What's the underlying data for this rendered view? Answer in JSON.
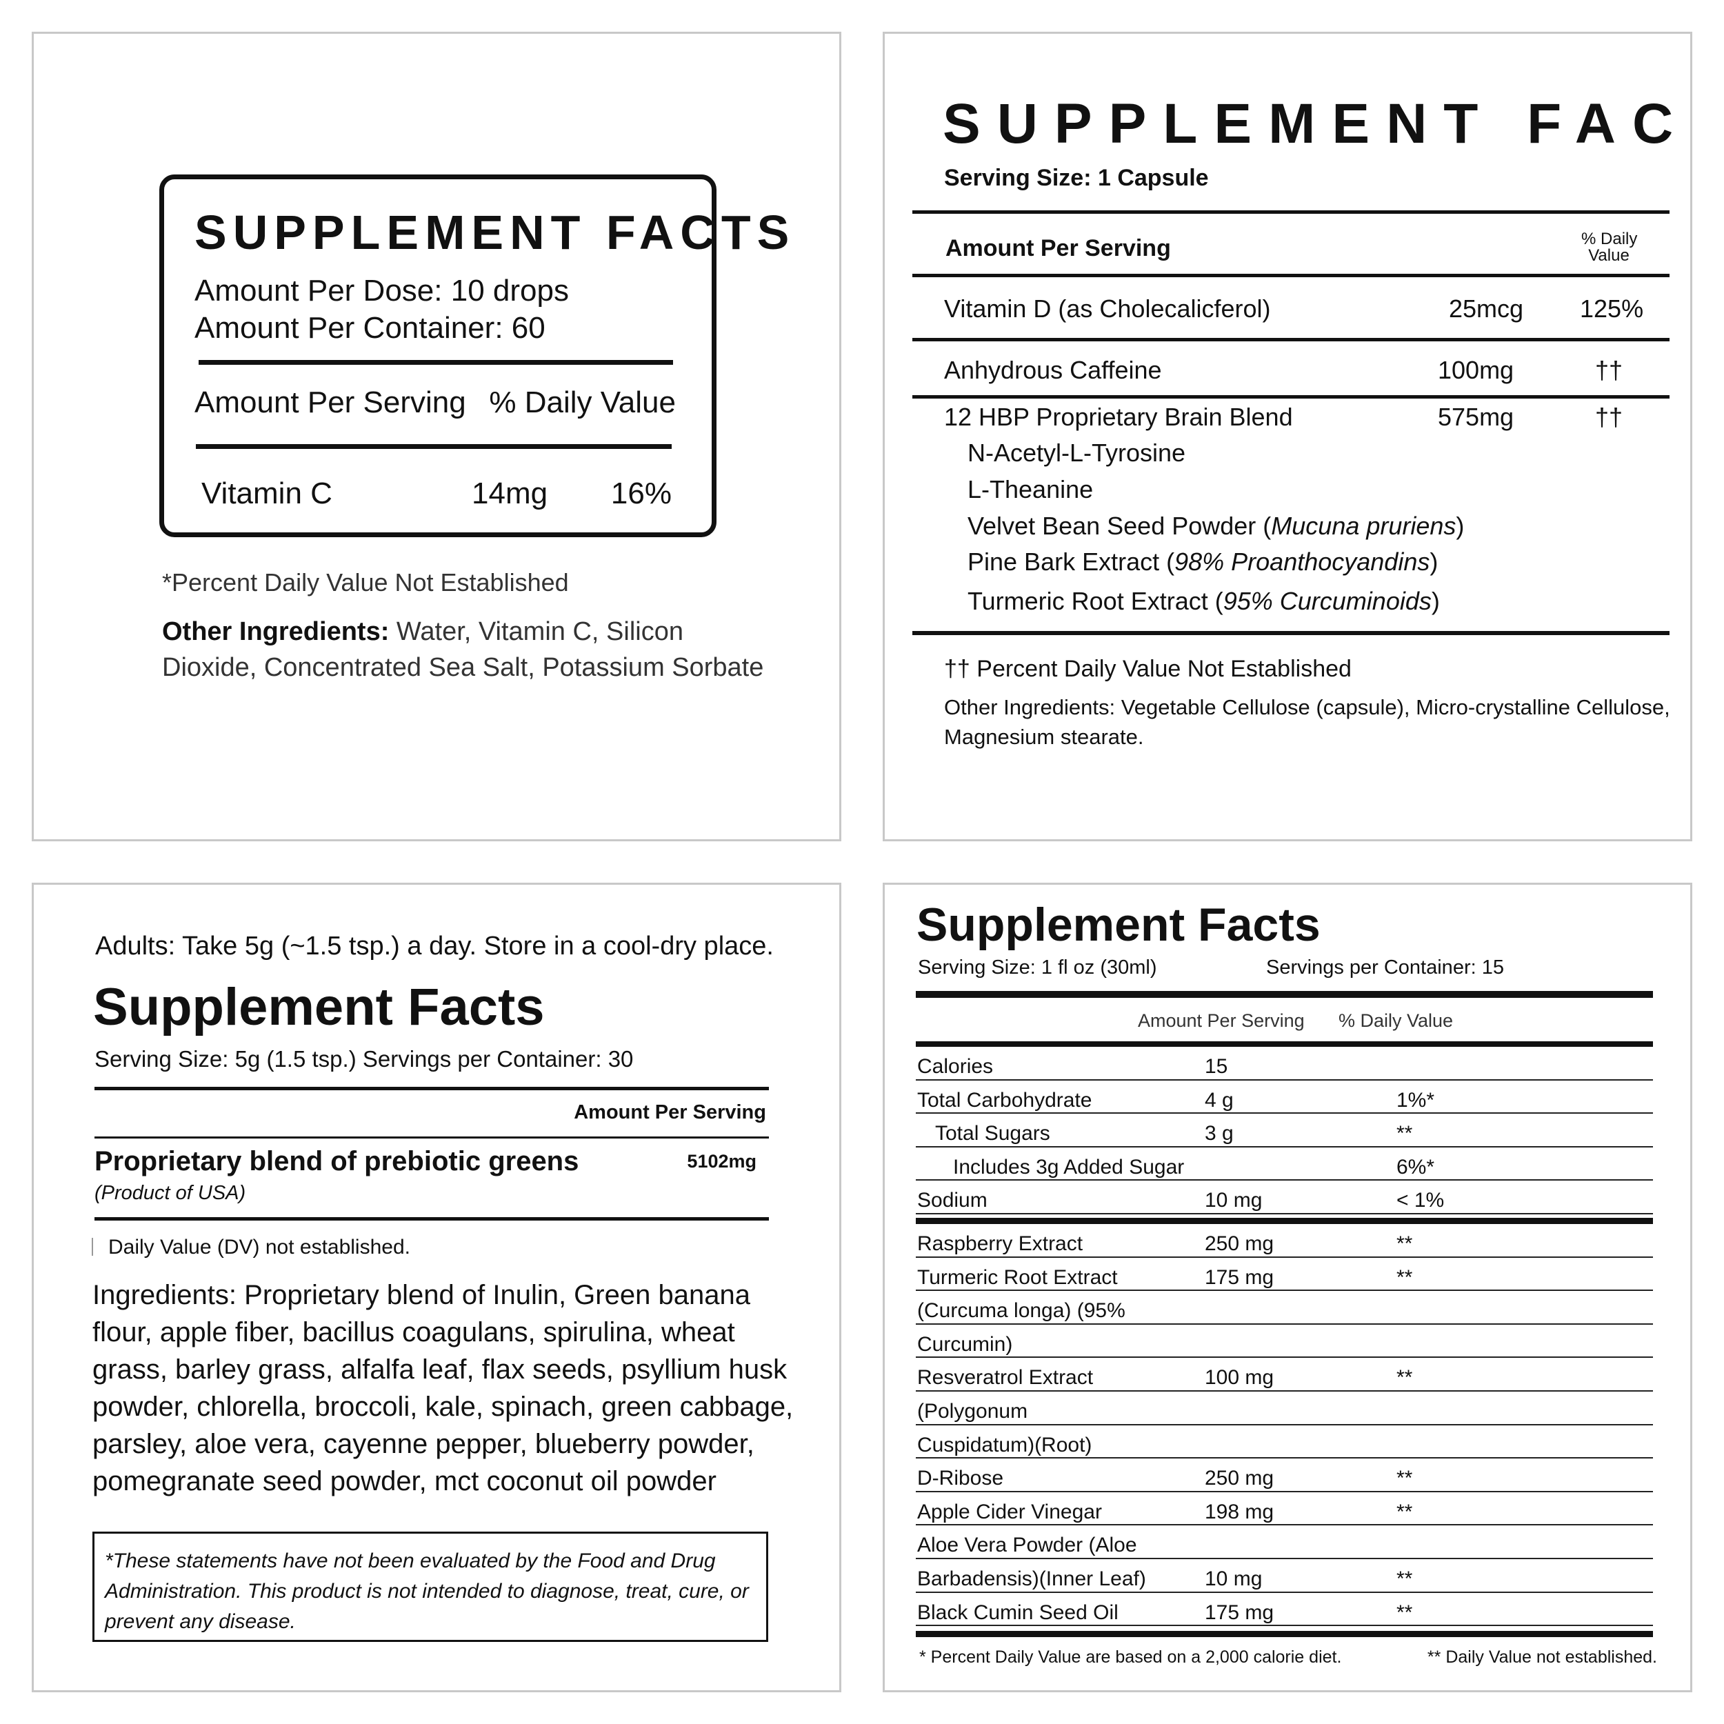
{
  "label1": {
    "title": "SUPPLEMENT FACTS",
    "dose": "Amount Per Dose: 10 drops",
    "container": "Amount Per Container: 60",
    "header_amount": "Amount Per Serving",
    "header_dv": "% Daily Value",
    "row": {
      "name": "Vitamin C",
      "amount": "14mg",
      "dv": "16%"
    },
    "footnote": "*Percent Daily Value Not Established",
    "other_label": "Other Ingredients:",
    "other_line1": " Water, Vitamin C, Silicon",
    "other_line2": "Dioxide, Concentrated Sea Salt, Potassium Sorbate"
  },
  "label2": {
    "title": "SUPPLEMENT FACTS",
    "serving": "Serving Size: 1 Capsule",
    "header_amount": "Amount Per Serving",
    "header_dv1": "% Daily",
    "header_dv2": "Value",
    "rows": [
      {
        "name": "Vitamin D  (as Cholecalicferol)",
        "amount": "25mcg",
        "dv": "125%"
      },
      {
        "name": "Anhydrous Caffeine",
        "amount": "100mg",
        "dv": "††"
      },
      {
        "name": "12 HBP Proprietary Brain Blend",
        "amount": "575mg",
        "dv": "††"
      }
    ],
    "blend": [
      {
        "name": "N-Acetyl-L-Tyrosine",
        "note": ""
      },
      {
        "name": "L-Theanine",
        "note": ""
      },
      {
        "name": "Velvet Bean Seed Powder  (",
        "note": "Mucuna pruriens",
        "close": ")"
      },
      {
        "name": "Pine Bark Extract  (",
        "note": "98% Proanthocyandins",
        "close": ")"
      },
      {
        "name": "Turmeric Root Extract (",
        "note": "95% Curcuminoids",
        "close": ")"
      }
    ],
    "footnote": "†† Percent Daily Value Not Established",
    "other_line1": "Other Ingredients: Vegetable Cellulose (capsule), Micro-crystalline Cellulose,",
    "other_line2": "Magnesium stearate."
  },
  "label3": {
    "directions": "Adults: Take 5g (~1.5 tsp.) a day. Store in a cool-dry place.",
    "title": "Supplement Facts",
    "serving": "Serving Size: 5g (1.5 tsp.) Servings per Container: 30",
    "header_amount": "Amount Per Serving",
    "blend_name": "Proprietary blend of prebiotic greens",
    "blend_amount": "5102mg",
    "origin": "(Product of USA)",
    "dv_note": "Daily Value (DV) not established.",
    "ingredients": [
      "Ingredients: Proprietary blend of Inulin, Green banana",
      "flour, apple fiber, bacillus coagulans, spirulina, wheat",
      "grass, barley grass, alfalfa leaf, flax seeds, psyllium husk",
      "powder, chlorella, broccoli, kale, spinach, green cabbage,",
      "parsley, aloe vera, cayenne pepper, blueberry powder,",
      "pomegranate seed powder, mct coconut oil powder"
    ],
    "disclaimer": [
      "*These statements have not been evaluated by the Food and Drug",
      "Administration. This product is not intended to diagnose, treat, cure, or",
      "prevent any disease."
    ]
  },
  "label4": {
    "title": "Supplement Facts",
    "serving": "Serving Size: 1 fl oz (30ml)",
    "servings_per": "Servings per Container: 15",
    "header_amount": "Amount Per Serving",
    "header_dv": "% Daily Value",
    "rows_top": [
      {
        "name": "Calories",
        "amount": "15",
        "dv": ""
      },
      {
        "name": "Total Carbohydrate",
        "amount": "4 g",
        "dv": "1%*"
      },
      {
        "name": "Total Sugars",
        "amount": "3 g",
        "dv": "**"
      },
      {
        "name": "Includes 3g Added Sugar",
        "amount": "",
        "dv": "6%*"
      },
      {
        "name": "Sodium",
        "amount": "10 mg",
        "dv": "< 1%"
      }
    ],
    "rows_bottom": [
      {
        "name": "Raspberry Extract",
        "amount": "250 mg",
        "dv": "**"
      },
      {
        "name": "Turmeric Root Extract",
        "amount": "175 mg",
        "dv": "**"
      },
      {
        "name": "(Curcuma longa) (95%",
        "amount": "",
        "dv": ""
      },
      {
        "name": "Curcumin)",
        "amount": "",
        "dv": ""
      },
      {
        "name": "Resveratrol Extract",
        "amount": "100 mg",
        "dv": "**"
      },
      {
        "name": "(Polygonum",
        "amount": "",
        "dv": ""
      },
      {
        "name": "Cuspidatum)(Root)",
        "amount": "",
        "dv": ""
      },
      {
        "name": "D-Ribose",
        "amount": "250 mg",
        "dv": "**"
      },
      {
        "name": "Apple Cider Vinegar",
        "amount": "198 mg",
        "dv": "**"
      },
      {
        "name": "Aloe Vera Powder (Aloe",
        "amount": "",
        "dv": ""
      },
      {
        "name": "Barbadensis)(Inner Leaf)",
        "amount": "10 mg",
        "dv": "**"
      },
      {
        "name": "Black Cumin Seed Oil",
        "amount": "175 mg",
        "dv": "**"
      }
    ],
    "footnote_left": "* Percent Daily Value are based on a 2,000 calorie diet.",
    "footnote_right": "** Daily Value not established."
  }
}
